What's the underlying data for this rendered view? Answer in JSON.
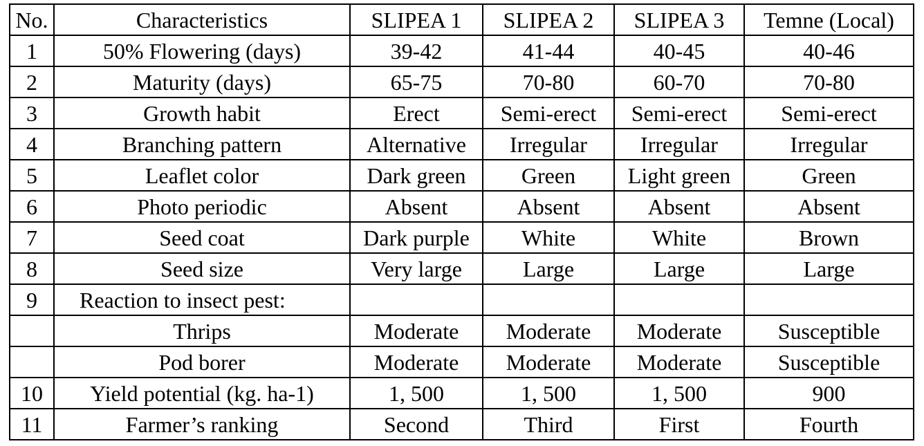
{
  "table": {
    "header": [
      "No.",
      "Characteristics",
      "SLIPEA 1",
      "SLIPEA 2",
      "SLIPEA 3",
      "Temne (Local)"
    ],
    "rows": [
      [
        "1",
        "50% Flowering (days)",
        "39-42",
        "41-44",
        "40-45",
        "40-46"
      ],
      [
        "2",
        "Maturity (days)",
        "65-75",
        "70-80",
        "60-70",
        "70-80"
      ],
      [
        "3",
        "Growth habit",
        "Erect",
        "Semi-erect",
        "Semi-erect",
        "Semi-erect"
      ],
      [
        "4",
        "Branching pattern",
        "Alternative",
        "Irregular",
        "Irregular",
        "Irregular"
      ],
      [
        "5",
        "Leaflet color",
        "Dark green",
        "Green",
        "Light green",
        "Green"
      ],
      [
        "6",
        "Photo periodic",
        "Absent",
        "Absent",
        "Absent",
        "Absent"
      ],
      [
        "7",
        "Seed coat",
        "Dark purple",
        "White",
        "White",
        "Brown"
      ],
      [
        "8",
        "Seed size",
        "Very large",
        "Large",
        "Large",
        "Large"
      ],
      [
        "9",
        "Reaction to insect pest:",
        null,
        null,
        null,
        null
      ],
      [
        null,
        "Thrips",
        "Moderate",
        "Moderate",
        "Moderate",
        "Susceptible"
      ],
      [
        null,
        "Pod borer",
        "Moderate",
        "Moderate",
        "Moderate",
        "Susceptible"
      ],
      [
        "10",
        "Yield potential (kg. ha-1)",
        "1, 500",
        "1, 500",
        "1, 500",
        "900"
      ],
      [
        "11",
        "Farmer’s ranking",
        "Second",
        "Third",
        "First",
        "Fourth"
      ]
    ]
  }
}
